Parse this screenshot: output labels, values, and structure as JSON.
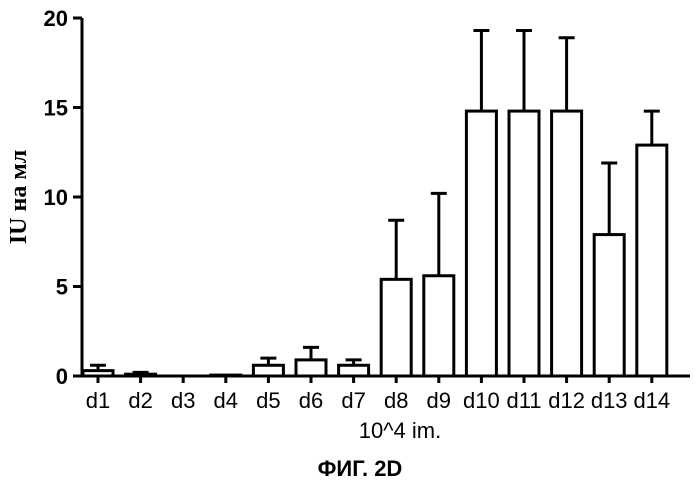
{
  "chart_data": {
    "type": "bar",
    "categories": [
      "d1",
      "d2",
      "d3",
      "d4",
      "d5",
      "d6",
      "d7",
      "d8",
      "d9",
      "d10",
      "d11",
      "d12",
      "d13",
      "d14"
    ],
    "values": [
      0.3,
      0.1,
      0.0,
      0.05,
      0.6,
      0.9,
      0.6,
      5.4,
      5.6,
      14.8,
      14.8,
      14.8,
      7.9,
      12.9
    ],
    "errors": [
      0.3,
      0.1,
      0.0,
      0.0,
      0.4,
      0.7,
      0.3,
      3.3,
      4.6,
      4.5,
      4.5,
      4.1,
      4.0,
      1.9
    ],
    "xlabel": "10^4 im.",
    "ylabel": "IU на мл",
    "caption": "ФИГ. 2D",
    "ylim": [
      0,
      20
    ],
    "yticks": [
      0,
      5,
      10,
      15,
      20
    ],
    "grid": false,
    "bar_fill": "#ffffff",
    "bar_stroke": "#000000"
  }
}
